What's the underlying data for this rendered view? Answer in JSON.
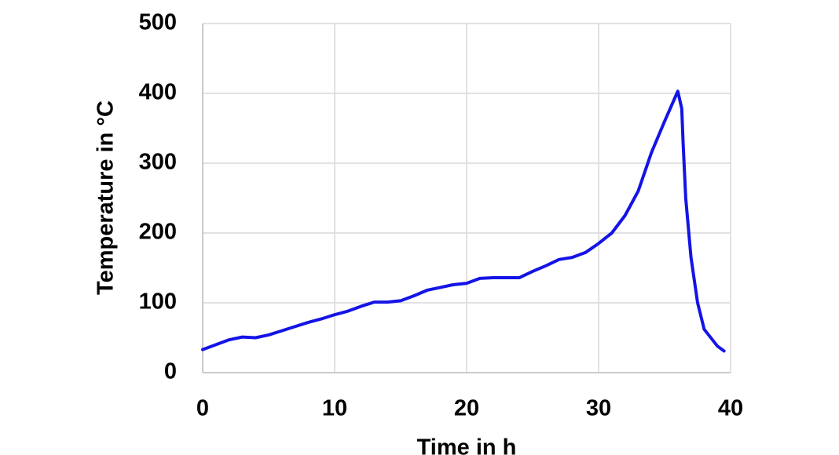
{
  "chart_data": {
    "type": "line",
    "x_label": "Time in h",
    "y_label": "Temperature in °C",
    "x": [
      0,
      1,
      2,
      3,
      4,
      5,
      6,
      7,
      8,
      9,
      10,
      11,
      12,
      13,
      14,
      15,
      16,
      17,
      18,
      19,
      20,
      21,
      22,
      23,
      24,
      25,
      26,
      27,
      28,
      29,
      30,
      31,
      32,
      33,
      34,
      35,
      36,
      36.3,
      36.4,
      36.6,
      37,
      37.5,
      38,
      39,
      39.5
    ],
    "series": [
      {
        "name": "Temperature",
        "color": "#1414e6",
        "values": [
          33,
          40,
          47,
          51,
          50,
          54,
          60,
          66,
          72,
          77,
          83,
          88,
          95,
          101,
          101,
          103,
          110,
          118,
          122,
          126,
          128,
          135,
          136,
          136,
          136,
          145,
          153,
          162,
          165,
          172,
          185,
          200,
          225,
          260,
          315,
          360,
          403,
          378,
          330,
          250,
          165,
          100,
          62,
          38,
          31
        ]
      }
    ],
    "xlim": [
      0,
      40
    ],
    "xticks": [
      0,
      10,
      20,
      30,
      40
    ],
    "ylim": [
      0,
      500
    ],
    "yticks": [
      0,
      100,
      200,
      300,
      400,
      500
    ],
    "grid": true
  }
}
